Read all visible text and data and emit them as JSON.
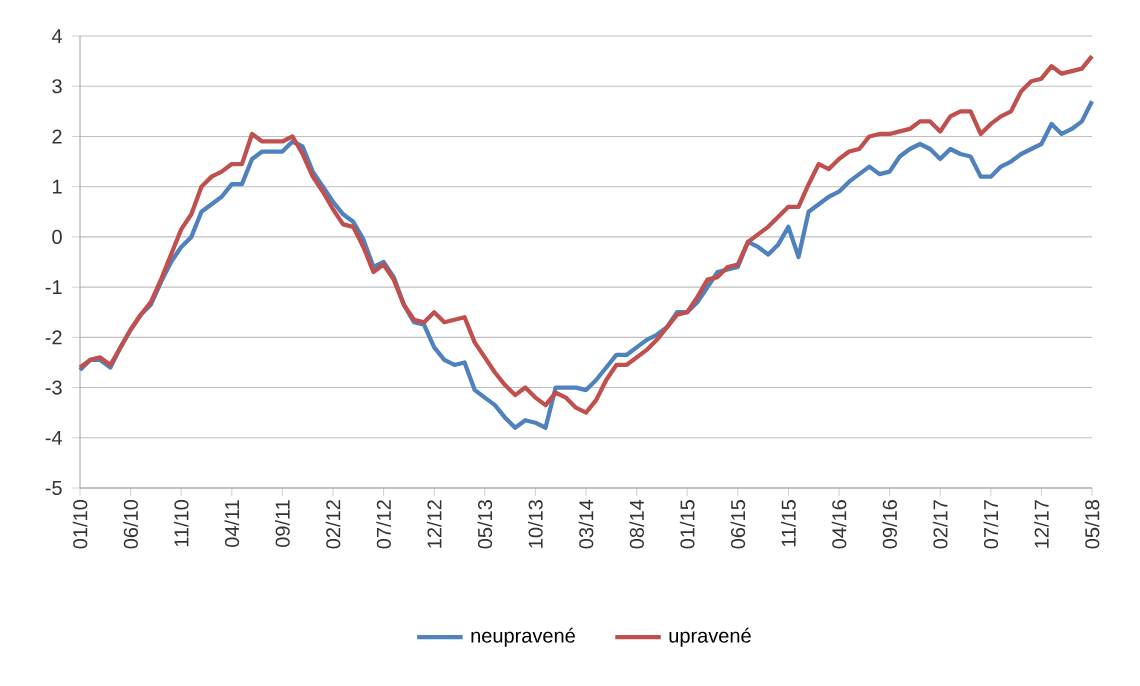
{
  "chart_data": {
    "type": "line",
    "categories": [
      "01/10",
      null,
      null,
      null,
      null,
      "06/10",
      null,
      null,
      null,
      null,
      "11/10",
      null,
      null,
      null,
      null,
      "04/11",
      null,
      null,
      null,
      null,
      "09/11",
      null,
      null,
      null,
      null,
      "02/12",
      null,
      null,
      null,
      null,
      "07/12",
      null,
      null,
      null,
      null,
      "12/12",
      null,
      null,
      null,
      null,
      "05/13",
      null,
      null,
      null,
      null,
      "10/13",
      null,
      null,
      null,
      null,
      "03/14",
      null,
      null,
      null,
      null,
      "08/14",
      null,
      null,
      null,
      null,
      "01/15",
      null,
      null,
      null,
      null,
      "06/15",
      null,
      null,
      null,
      null,
      "11/15",
      null,
      null,
      null,
      null,
      "04/16",
      null,
      null,
      null,
      null,
      "09/16",
      null,
      null,
      null,
      null,
      "02/17",
      null,
      null,
      null,
      null,
      "07/17",
      null,
      null,
      null,
      null,
      "12/17",
      null,
      null,
      null,
      null,
      "05/18"
    ],
    "series": [
      {
        "name": "neupravené",
        "color": "#4f81bd",
        "values": [
          -2.65,
          -2.45,
          -2.45,
          -2.6,
          -2.2,
          -1.85,
          -1.55,
          -1.35,
          -0.9,
          -0.5,
          -0.2,
          0.0,
          0.5,
          0.65,
          0.8,
          1.05,
          1.05,
          1.55,
          1.7,
          1.7,
          1.7,
          1.9,
          1.8,
          1.3,
          1.0,
          0.7,
          0.45,
          0.3,
          -0.05,
          -0.6,
          -0.5,
          -0.8,
          -1.35,
          -1.7,
          -1.75,
          -2.2,
          -2.45,
          -2.55,
          -2.5,
          -3.05,
          -3.2,
          -3.35,
          -3.6,
          -3.8,
          -3.65,
          -3.7,
          -3.8,
          -3.0,
          -3.0,
          -3.0,
          -3.05,
          -2.85,
          -2.6,
          -2.35,
          -2.35,
          -2.2,
          -2.05,
          -1.95,
          -1.8,
          -1.5,
          -1.5,
          -1.3,
          -1.0,
          -0.7,
          -0.65,
          -0.6,
          -0.1,
          -0.2,
          -0.35,
          -0.15,
          0.2,
          -0.4,
          0.5,
          0.65,
          0.8,
          0.9,
          1.1,
          1.25,
          1.4,
          1.25,
          1.3,
          1.6,
          1.75,
          1.85,
          1.75,
          1.55,
          1.75,
          1.65,
          1.6,
          1.2,
          1.2,
          1.4,
          1.5,
          1.65,
          1.75,
          1.85,
          2.25,
          2.05,
          2.15,
          2.3,
          2.7
        ]
      },
      {
        "name": "upravené",
        "color": "#c0504d",
        "values": [
          -2.6,
          -2.45,
          -2.4,
          -2.55,
          -2.2,
          -1.85,
          -1.55,
          -1.3,
          -0.85,
          -0.35,
          0.15,
          0.45,
          1.0,
          1.2,
          1.3,
          1.45,
          1.45,
          2.05,
          1.9,
          1.9,
          1.9,
          2.0,
          1.65,
          1.2,
          0.9,
          0.55,
          0.25,
          0.2,
          -0.2,
          -0.7,
          -0.55,
          -0.85,
          -1.35,
          -1.65,
          -1.7,
          -1.5,
          -1.7,
          -1.65,
          -1.6,
          -2.1,
          -2.4,
          -2.7,
          -2.95,
          -3.15,
          -3.0,
          -3.2,
          -3.35,
          -3.1,
          -3.2,
          -3.4,
          -3.5,
          -3.25,
          -2.85,
          -2.55,
          -2.55,
          -2.4,
          -2.25,
          -2.05,
          -1.8,
          -1.55,
          -1.5,
          -1.2,
          -0.85,
          -0.8,
          -0.6,
          -0.55,
          -0.1,
          0.05,
          0.2,
          0.4,
          0.6,
          0.6,
          1.05,
          1.45,
          1.35,
          1.55,
          1.7,
          1.75,
          2.0,
          2.05,
          2.05,
          2.1,
          2.15,
          2.3,
          2.3,
          2.1,
          2.4,
          2.5,
          2.5,
          2.05,
          2.25,
          2.4,
          2.5,
          2.9,
          3.1,
          3.15,
          3.4,
          3.25,
          3.3,
          3.35,
          3.6
        ]
      }
    ],
    "ylim": [
      -5,
      4
    ],
    "yticks": [
      -5,
      -4,
      -3,
      -2,
      -1,
      0,
      1,
      2,
      3,
      4
    ],
    "grid": "y",
    "legend": "bottom",
    "marker": "none",
    "line_style": "solid"
  }
}
